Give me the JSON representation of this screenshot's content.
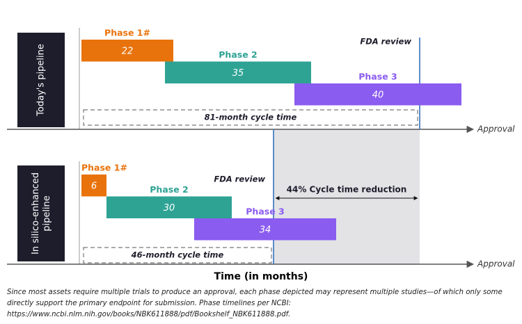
{
  "chart_data": {
    "type": "gantt",
    "x_label": "Time (in months)",
    "end_label": "Approval",
    "reduction_label": "44% Cycle time reduction",
    "footnote": "Since most assets require multiple trials to produce an approval, each phase depicted may represent multiple studies—of which only some directly support the primary endpoint for submission. Phase timelines per NCBI: https://www.ncbi.nlm.nih.gov/books/NBK611888/pdf/Bookshelf_NBK611888.pdf.",
    "xlim": [
      0,
      94
    ],
    "panels": [
      {
        "label": "Today's pipeline",
        "review_label": "FDA review",
        "review": 81,
        "cycle_label": "81-month cycle time",
        "phases": [
          {
            "name": "Phase 1#",
            "start": 0,
            "duration": 22,
            "color": "#e8730c"
          },
          {
            "name": "Phase 2",
            "start": 20,
            "duration": 35,
            "color": "#2ea394"
          },
          {
            "name": "Phase 3",
            "start": 51,
            "duration": 40,
            "color": "#8b5cf0"
          }
        ]
      },
      {
        "label": "In silico-enhanced pipeline",
        "review_label": "FDA review",
        "review": 46,
        "cycle_label": "46-month cycle time",
        "phases": [
          {
            "name": "Phase 1#",
            "start": 0,
            "duration": 6,
            "color": "#e8730c"
          },
          {
            "name": "Phase 2",
            "start": 6,
            "duration": 30,
            "color": "#2ea394"
          },
          {
            "name": "Phase 3",
            "start": 27,
            "duration": 34,
            "color": "#8b5cf0"
          }
        ]
      }
    ]
  }
}
